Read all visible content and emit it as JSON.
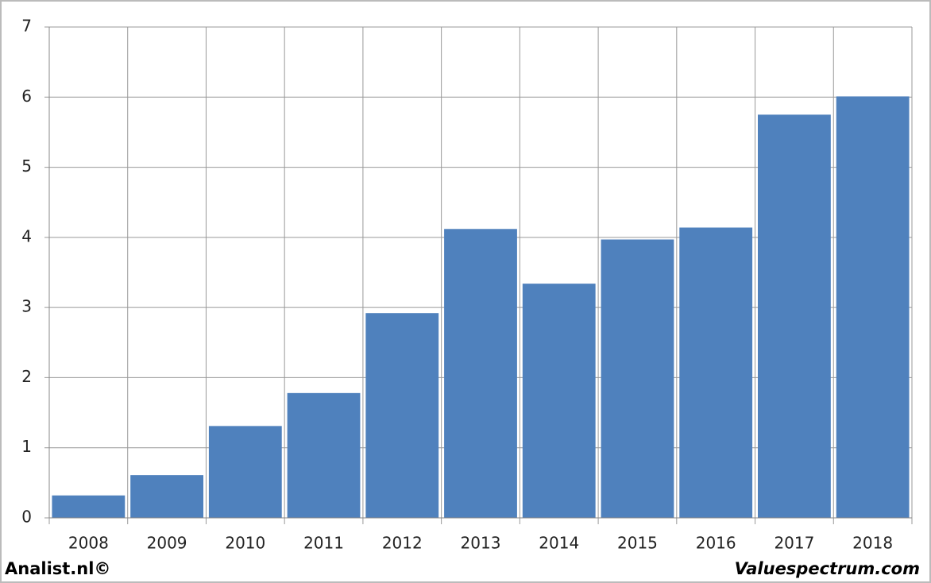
{
  "chart_data": {
    "type": "bar",
    "categories": [
      "2008",
      "2009",
      "2010",
      "2011",
      "2012",
      "2013",
      "2014",
      "2015",
      "2016",
      "2017",
      "2018"
    ],
    "values": [
      0.32,
      0.61,
      1.31,
      1.78,
      2.92,
      4.12,
      3.34,
      3.97,
      4.14,
      5.75,
      6.01
    ],
    "color": "#4f81bd",
    "ylim": [
      0,
      7
    ],
    "yticks": [
      0,
      1,
      2,
      3,
      4,
      5,
      6,
      7
    ],
    "grid": true
  },
  "footer": {
    "left": "Analist.nl©",
    "right": "Valuespectrum.com"
  }
}
